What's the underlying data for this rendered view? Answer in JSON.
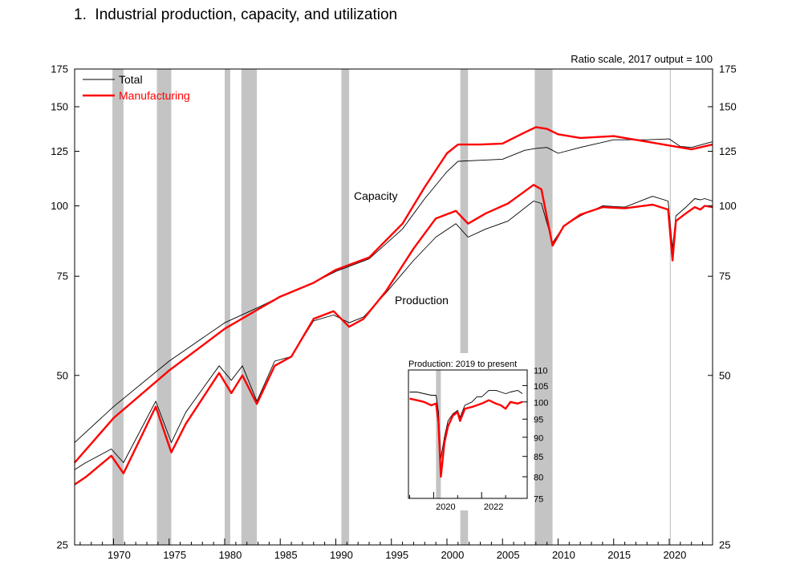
{
  "figure": {
    "number": "1.",
    "title": "Industrial production, capacity, and utilization",
    "note": "Ratio scale, 2017 output = 100"
  },
  "chart_data": [
    {
      "type": "line",
      "title": "Industrial production, capacity, and utilization",
      "note": "Ratio scale, 2017 output = 100",
      "xlabel": "",
      "ylabel": "",
      "scale": "log",
      "xlim": [
        1966.5,
        2023.9
      ],
      "ylim": [
        25,
        175
      ],
      "yticks": [
        25,
        50,
        75,
        100,
        125,
        150,
        175
      ],
      "xticks": [
        1970,
        1975,
        1980,
        1985,
        1990,
        1995,
        2000,
        2005,
        2010,
        2015,
        2020
      ],
      "grid": false,
      "legend_position": "top-left",
      "legend": [
        {
          "name": "Total",
          "color": "#000000"
        },
        {
          "name": "Manufacturing",
          "color": "#ff0000"
        }
      ],
      "annotations": [
        "Capacity",
        "Production"
      ],
      "recessions": [
        [
          1969.9,
          1970.9
        ],
        [
          1973.9,
          1975.2
        ],
        [
          1980.0,
          1980.5
        ],
        [
          1981.5,
          1982.9
        ],
        [
          1990.5,
          1991.2
        ],
        [
          2001.2,
          2001.9
        ],
        [
          2007.9,
          2009.5
        ],
        [
          2020.1,
          2020.35
        ]
      ],
      "series": [
        {
          "name": "Total capacity",
          "color": "#000000",
          "width": 0.9,
          "x": [
            1966.5,
            1970,
            1975,
            1980,
            1983,
            1985,
            1988,
            1990,
            1993,
            1996,
            1998,
            2000,
            2001,
            2003,
            2005,
            2007,
            2008,
            2009,
            2010,
            2012,
            2015,
            2018,
            2020,
            2021,
            2022,
            2023.9
          ],
          "y": [
            38,
            44,
            53,
            62,
            66,
            69,
            73,
            76.5,
            80.5,
            91,
            103,
            115,
            120,
            120.5,
            121,
            125.5,
            126.5,
            127,
            124,
            127,
            131,
            131,
            131.5,
            127.5,
            127,
            130
          ]
        },
        {
          "name": "Manufacturing capacity",
          "color": "#ff0000",
          "width": 2.4,
          "x": [
            1966.5,
            1970,
            1975,
            1980,
            1983,
            1985,
            1988,
            1990,
            1993,
            1996,
            1998,
            2000,
            2001,
            2003,
            2005,
            2007,
            2008,
            2009,
            2010,
            2012,
            2015,
            2018,
            2020,
            2021,
            2022,
            2023.9
          ],
          "y": [
            35,
            42,
            51,
            60.5,
            65.5,
            69,
            73,
            77,
            81,
            93,
            108,
            124,
            128.5,
            128.5,
            129,
            135,
            138,
            137,
            134,
            132,
            133,
            130,
            128,
            127,
            126,
            128.5
          ]
        },
        {
          "name": "Total production",
          "color": "#000000",
          "width": 0.9,
          "x": [
            1966.5,
            1967.5,
            1969.8,
            1970.9,
            1973.8,
            1975.2,
            1976.5,
            1979.5,
            1980.6,
            1981.6,
            1982.9,
            1984.5,
            1986,
            1988,
            1989.8,
            1991.2,
            1992.5,
            1994.5,
            1997,
            1999,
            2000.8,
            2001.9,
            2003.5,
            2005.5,
            2007.8,
            2008.5,
            2009.5,
            2010.5,
            2012,
            2014,
            2016,
            2018.5,
            2019.9,
            2020.3,
            2020.6,
            2021.5,
            2022.3,
            2022.8,
            2023.2,
            2023.9
          ],
          "y": [
            34,
            35,
            37,
            35,
            45,
            38,
            43,
            52,
            49,
            52,
            45,
            53,
            54,
            62.5,
            64,
            62,
            63.5,
            70,
            80,
            88,
            93,
            88,
            91,
            94,
            102,
            101,
            86,
            92,
            96,
            100,
            99.5,
            104,
            102,
            84,
            96,
            99.5,
            103,
            102.5,
            103,
            102
          ]
        },
        {
          "name": "Manufacturing production",
          "color": "#ff0000",
          "width": 2.4,
          "x": [
            1966.5,
            1967.5,
            1969.8,
            1970.9,
            1973.8,
            1975.2,
            1976.5,
            1979.5,
            1980.6,
            1981.6,
            1982.9,
            1984.5,
            1986,
            1988,
            1989.8,
            1991.2,
            1992.5,
            1994.5,
            1997,
            1999,
            2000.8,
            2001.9,
            2003.5,
            2005.5,
            2007.8,
            2008.5,
            2009.5,
            2010.5,
            2012,
            2014,
            2016,
            2018.5,
            2019.9,
            2020.3,
            2020.6,
            2021.5,
            2022.3,
            2022.8,
            2023.2,
            2023.9
          ],
          "y": [
            32,
            33,
            36,
            33.5,
            44,
            36.5,
            41,
            50.5,
            46.5,
            50,
            44.5,
            52,
            54,
            63,
            65,
            61,
            63,
            70.5,
            84,
            95,
            98,
            93,
            97,
            101,
            109,
            107,
            85,
            92,
            96.5,
            99.5,
            99,
            100.5,
            98.5,
            80,
            94,
            97,
            99.5,
            98.5,
            100,
            99.5
          ]
        }
      ]
    },
    {
      "type": "line",
      "title": "Production: 2019 to present",
      "xlabel": "",
      "ylabel": "",
      "scale": "log",
      "xlim": [
        2018.95,
        2023.9
      ],
      "ylim": [
        75,
        110
      ],
      "yticks": [
        75,
        80,
        85,
        90,
        95,
        100,
        105,
        110
      ],
      "xticks": [
        2020,
        2022
      ],
      "grid": false,
      "recessions": [
        [
          2020.1,
          2020.3
        ]
      ],
      "series": [
        {
          "name": "Total",
          "color": "#000000",
          "width": 0.9,
          "x": [
            2019.0,
            2019.3,
            2019.6,
            2019.9,
            2020.1,
            2020.2,
            2020.3,
            2020.45,
            2020.6,
            2020.8,
            2021.0,
            2021.1,
            2021.3,
            2021.6,
            2021.8,
            2022.0,
            2022.3,
            2022.6,
            2022.8,
            2023.0,
            2023.2,
            2023.5,
            2023.7
          ],
          "y": [
            103,
            103,
            102.5,
            102,
            102,
            97,
            84.5,
            90,
            94.5,
            96.5,
            97.5,
            95.5,
            99,
            100,
            101.5,
            101.5,
            103.5,
            103.5,
            103,
            102.5,
            103,
            103.5,
            102.5
          ]
        },
        {
          "name": "Manufacturing",
          "color": "#ff0000",
          "width": 2.4,
          "x": [
            2019.0,
            2019.3,
            2019.6,
            2019.9,
            2020.1,
            2020.2,
            2020.3,
            2020.45,
            2020.6,
            2020.8,
            2021.0,
            2021.1,
            2021.3,
            2021.6,
            2021.8,
            2022.0,
            2022.3,
            2022.6,
            2022.8,
            2023.0,
            2023.2,
            2023.5,
            2023.7
          ],
          "y": [
            101,
            100.5,
            100,
            99,
            99.5,
            94,
            80,
            88.5,
            93,
            96,
            97,
            94.5,
            98,
            98.5,
            99,
            99.5,
            100.5,
            99.5,
            99,
            98,
            100,
            99.5,
            100
          ]
        }
      ]
    }
  ]
}
